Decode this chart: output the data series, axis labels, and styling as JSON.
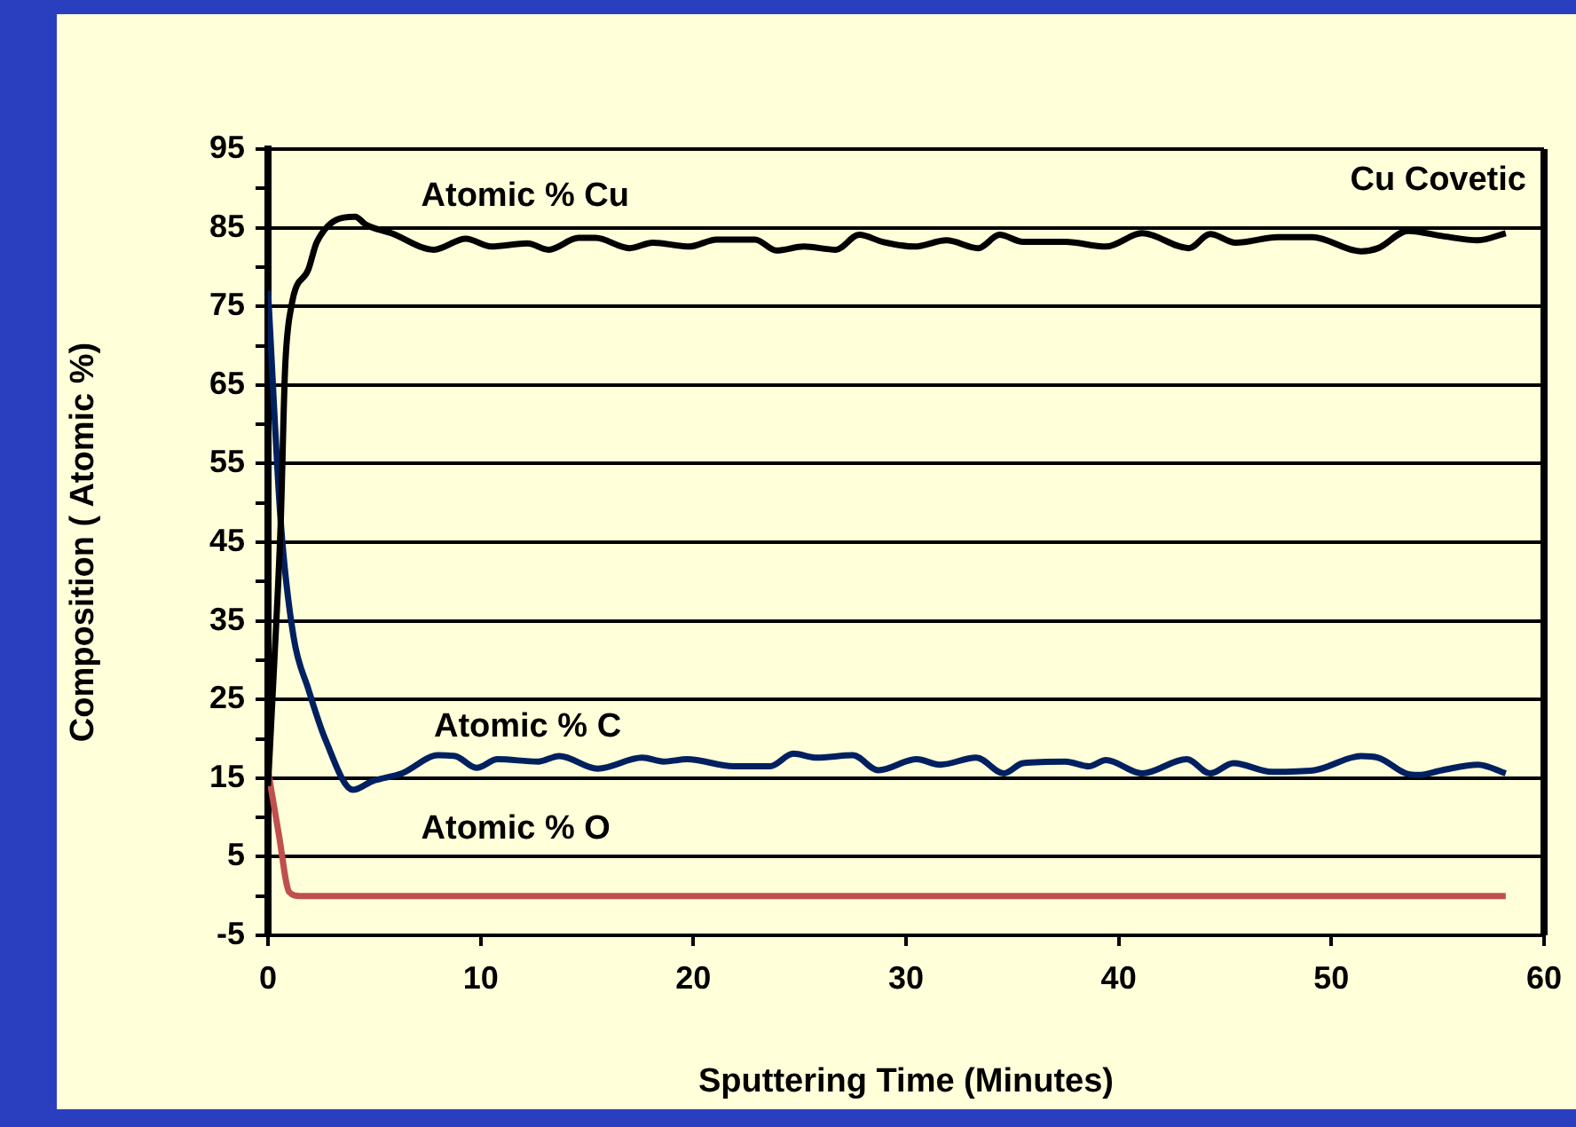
{
  "chart_data": {
    "type": "line",
    "xlabel": "Sputtering Time (Minutes)",
    "ylabel": "Composition ( Atomic %)",
    "annotations": [
      "Cu Covetic"
    ],
    "xlim": [
      0,
      60
    ],
    "xticks": [
      0,
      10,
      20,
      30,
      40,
      50,
      60
    ],
    "ylim": [
      -5,
      95
    ],
    "yticks": [
      -5,
      {
        "value": 0,
        "label": null
      },
      5,
      {
        "value": 10,
        "label": null
      },
      15,
      {
        "value": 20,
        "label": null
      },
      25,
      {
        "value": 30,
        "label": null
      },
      35,
      {
        "value": 40,
        "label": null
      },
      45,
      {
        "value": 50,
        "label": null
      },
      55,
      {
        "value": 60,
        "label": null
      },
      65,
      {
        "value": 70,
        "label": null
      },
      75,
      {
        "value": 80,
        "label": null
      },
      85,
      {
        "value": 90,
        "label": null
      },
      95
    ],
    "grid": "y",
    "legend": false,
    "marker": "none",
    "line_style": "solid",
    "series": [
      {
        "name": "Atomic % Cu",
        "color": "#000000",
        "x": [
          0,
          0.3,
          0.6,
          0.8,
          1.1,
          1.9,
          2.3,
          4.1,
          4.6,
          5.8,
          7.8,
          9.3,
          10.5,
          12.2,
          13.2,
          14.6,
          15.4,
          17,
          18.1,
          19.8,
          21.1,
          22.9,
          23.9,
          25.2,
          26.7,
          27.8,
          28.9,
          30.4,
          31.9,
          33.4,
          34.4,
          35.5,
          37.5,
          39.4,
          41.1,
          43.3,
          44.3,
          45.5,
          47.5,
          49.1,
          51.4,
          52.2,
          53.6,
          55.3,
          56.9,
          58.2
        ],
        "values": [
          14,
          30,
          47.6,
          66.8,
          75,
          79.7,
          83.2,
          86.4,
          85.4,
          84.3,
          82.2,
          83.6,
          82.6,
          83,
          82.2,
          83.7,
          83.7,
          82.4,
          83.1,
          82.6,
          83.5,
          83.5,
          82.1,
          82.6,
          82.2,
          84.1,
          83.2,
          82.6,
          83.4,
          82.4,
          84.1,
          83.2,
          83.2,
          82.6,
          84.3,
          82.4,
          84.2,
          83.1,
          83.8,
          83.8,
          82,
          82.4,
          84.6,
          83.9,
          83.4,
          84.3
        ]
      },
      {
        "name": "Atomic % C",
        "color": "#002060",
        "x": [
          0,
          0.6,
          1.2,
          1.9,
          2.7,
          4,
          4.9,
          6.3,
          8,
          8.8,
          9.8,
          10.8,
          12.7,
          13.7,
          15.5,
          17.6,
          18.6,
          19.7,
          21.9,
          23.6,
          24.7,
          25.8,
          27.5,
          28.7,
          30.5,
          31.6,
          33.3,
          34.6,
          35.5,
          37.5,
          38.6,
          39.4,
          41.1,
          43.2,
          44.3,
          45.4,
          47.2,
          49.2,
          51.4,
          52.2,
          53.5,
          54.1,
          55.2,
          56.9,
          58.2
        ],
        "values": [
          77,
          47.6,
          33,
          26.3,
          19.9,
          13.5,
          14.6,
          15.6,
          17.9,
          17.8,
          16.3,
          17.4,
          17.1,
          17.8,
          16.2,
          17.6,
          17.1,
          17.4,
          16.5,
          16.5,
          18.1,
          17.6,
          17.9,
          16,
          17.4,
          16.7,
          17.6,
          15.6,
          16.9,
          17.1,
          16.5,
          17.3,
          15.6,
          17.4,
          15.6,
          16.9,
          15.8,
          16,
          17.8,
          17.6,
          15.6,
          15.4,
          16,
          16.7,
          15.6
        ]
      },
      {
        "name": "Atomic % O",
        "color": "#c0504d",
        "x": [
          0,
          0.5,
          1,
          1.5,
          58.2
        ],
        "values": [
          16,
          8,
          0.5,
          0,
          0
        ]
      }
    ]
  }
}
